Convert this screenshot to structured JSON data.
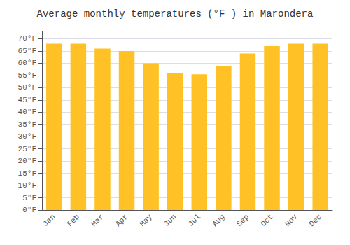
{
  "chart_data": {
    "type": "bar",
    "title": "Average monthly temperatures (°F ) in Marondera",
    "categories": [
      "Jan",
      "Feb",
      "Mar",
      "Apr",
      "May",
      "Jun",
      "Jul",
      "Aug",
      "Sep",
      "Oct",
      "Nov",
      "Dec"
    ],
    "values": [
      68,
      68,
      66,
      65,
      60,
      56,
      55.5,
      59,
      64,
      67,
      68,
      68
    ],
    "color": "#FFC125",
    "ylim": [
      0,
      73
    ],
    "yticks": [
      {
        "value": 0,
        "label": "0°F"
      },
      {
        "value": 5,
        "label": "5°F"
      },
      {
        "value": 10,
        "label": "10°F"
      },
      {
        "value": 15,
        "label": "15°F"
      },
      {
        "value": 20,
        "label": "20°F"
      },
      {
        "value": 25,
        "label": "25°F"
      },
      {
        "value": 30,
        "label": "30°F"
      },
      {
        "value": 35,
        "label": "35°F"
      },
      {
        "value": 40,
        "label": "40°F"
      },
      {
        "value": 45,
        "label": "45°F"
      },
      {
        "value": 50,
        "label": "50°F"
      },
      {
        "value": 55,
        "label": "55°F"
      },
      {
        "value": 60,
        "label": "60°F"
      },
      {
        "value": 65,
        "label": "65°F"
      },
      {
        "value": 70,
        "label": "70°F"
      }
    ],
    "grid": true
  }
}
